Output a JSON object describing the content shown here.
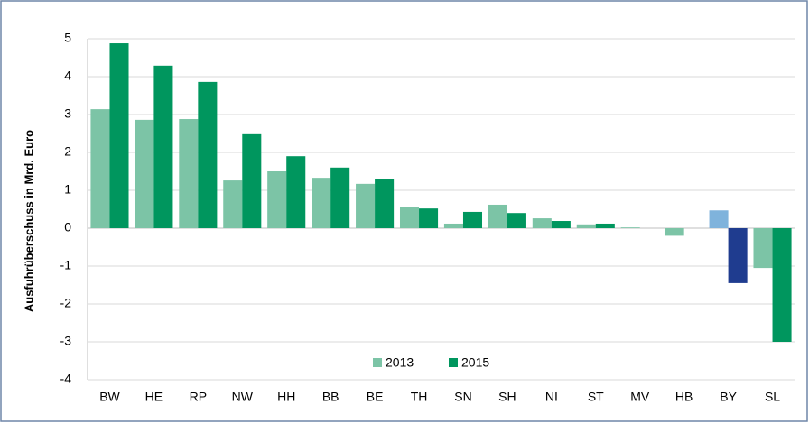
{
  "chart_data": {
    "type": "bar",
    "y_label": "Ausfuhrüberschuss in Mrd. Euro",
    "categories": [
      "BW",
      "HE",
      "RP",
      "NW",
      "HH",
      "BB",
      "BE",
      "TH",
      "SN",
      "SH",
      "NI",
      "ST",
      "MV",
      "HB",
      "BY",
      "SL"
    ],
    "series": [
      {
        "name": "2013",
        "color": "#7cc4a6",
        "values": [
          3.14,
          2.86,
          2.88,
          1.26,
          1.5,
          1.33,
          1.17,
          0.57,
          0.12,
          0.62,
          0.26,
          0.1,
          0.02,
          -0.2,
          0.47,
          -1.05
        ],
        "colors": [
          "#7cc4a6",
          "#7cc4a6",
          "#7cc4a6",
          "#7cc4a6",
          "#7cc4a6",
          "#7cc4a6",
          "#7cc4a6",
          "#7cc4a6",
          "#7cc4a6",
          "#7cc4a6",
          "#7cc4a6",
          "#7cc4a6",
          "#7cc4a6",
          "#7cc4a6",
          "#7fb3dc",
          "#7cc4a6"
        ]
      },
      {
        "name": "2015",
        "color": "#00965e",
        "values": [
          4.88,
          4.29,
          3.86,
          2.48,
          1.9,
          1.6,
          1.29,
          0.52,
          0.43,
          0.4,
          0.19,
          0.12,
          0,
          0,
          -1.45,
          -3.0
        ],
        "colors": [
          "#00965e",
          "#00965e",
          "#00965e",
          "#00965e",
          "#00965e",
          "#00965e",
          "#00965e",
          "#00965e",
          "#00965e",
          "#00965e",
          "#00965e",
          "#00965e",
          "#00965e",
          "#00965e",
          "#1f3c8f",
          "#00965e"
        ]
      }
    ],
    "ylim": [
      -4,
      5
    ],
    "yticks": [
      -4,
      -3,
      -2,
      -1,
      0,
      1,
      2,
      3,
      4,
      5
    ],
    "grid": true,
    "legend": "bottom"
  }
}
